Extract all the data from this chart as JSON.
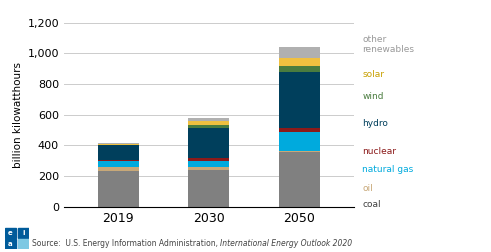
{
  "years": [
    "2019",
    "2030",
    "2050"
  ],
  "series": {
    "coal": {
      "values": [
        230,
        240,
        355
      ],
      "color": "#808080"
    },
    "oil": {
      "values": [
        30,
        20,
        5
      ],
      "color": "#c8a878"
    },
    "natural gas": {
      "values": [
        35,
        40,
        130
      ],
      "color": "#00aadd"
    },
    "nuclear": {
      "values": [
        10,
        15,
        20
      ],
      "color": "#8b1a1a"
    },
    "hydro": {
      "values": [
        95,
        200,
        370
      ],
      "color": "#003f5c"
    },
    "wind": {
      "values": [
        5,
        20,
        35
      ],
      "color": "#4a7c3f"
    },
    "solar": {
      "values": [
        5,
        25,
        55
      ],
      "color": "#f0c040"
    },
    "other\nrenewables": {
      "values": [
        5,
        20,
        70
      ],
      "color": "#b0b0b0"
    }
  },
  "ylabel": "billion kilowatthours",
  "ylim": [
    0,
    1200
  ],
  "yticks": [
    0,
    200,
    400,
    600,
    800,
    1000,
    1200
  ],
  "ytick_labels": [
    "0",
    "200",
    "400",
    "600",
    "800",
    "1,000",
    "1,200"
  ],
  "source_text": "Source:  U.S. Energy Information Administration, International Energy Outlook 2020",
  "legend_labels": [
    "other\nrenewables",
    "solar",
    "wind",
    "hydro",
    "nuclear",
    "natural gas",
    "oil",
    "coal"
  ],
  "legend_colors_text": {
    "other\nrenewables": "#999999",
    "solar": "#c8a000",
    "wind": "#4a7c3f",
    "hydro": "#003f5c",
    "nuclear": "#8b1a1a",
    "natural gas": "#00aadd",
    "oil": "#c8a878",
    "coal": "#404040"
  },
  "bar_width": 0.45
}
